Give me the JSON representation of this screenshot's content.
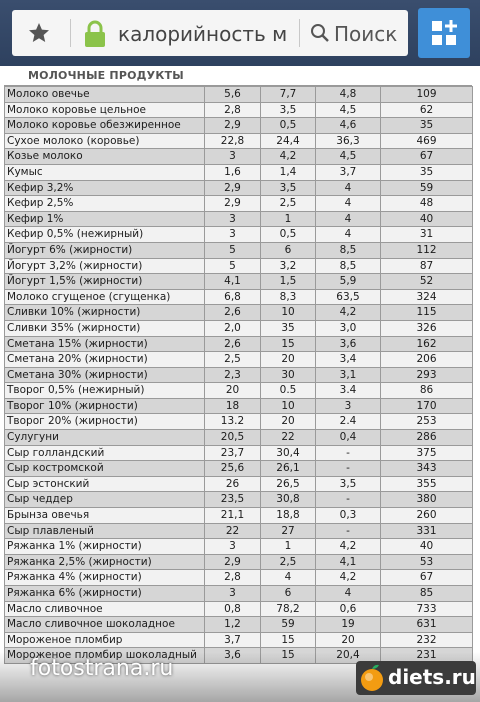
{
  "browser": {
    "url_text": "калорийность м",
    "search_label": "Поиск",
    "colors": {
      "bar": "#34486a",
      "tabs_button": "#3f8fd8",
      "lock": "#8bc34a"
    },
    "icons": [
      "star-icon",
      "lock-icon",
      "search-icon",
      "tabs-grid-icon"
    ]
  },
  "table": {
    "heading": "МОЛОЧНЫЕ ПРОДУКТЫ",
    "rows": [
      [
        "Молоко овечье",
        "5,6",
        "7,7",
        "4,8",
        "109"
      ],
      [
        "Молоко коровье цельное",
        "2,8",
        "3,5",
        "4,5",
        "62"
      ],
      [
        "Молоко коровье обезжиренное",
        "2,9",
        "0,5",
        "4,6",
        "35"
      ],
      [
        "Сухое молоко (коровье)",
        "22,8",
        "24,4",
        "36,3",
        "469"
      ],
      [
        "Козье молоко",
        "3",
        "4,2",
        "4,5",
        "67"
      ],
      [
        "Кумыс",
        "1,6",
        "1,4",
        "3,7",
        "35"
      ],
      [
        "Кефир 3,2%",
        "2,9",
        "3,5",
        "4",
        "59"
      ],
      [
        "Кефир 2,5%",
        "2,9",
        "2,5",
        "4",
        "48"
      ],
      [
        "Кефир 1%",
        "3",
        "1",
        "4",
        "40"
      ],
      [
        "Кефир 0,5% (нежирный)",
        "3",
        "0,5",
        "4",
        "31"
      ],
      [
        "Йогурт 6% (жирности)",
        "5",
        "6",
        "8,5",
        "112"
      ],
      [
        "Йогурт 3,2% (жирности)",
        "5",
        "3,2",
        "8,5",
        "87"
      ],
      [
        "Йогурт 1,5% (жирности)",
        "4,1",
        "1,5",
        "5,9",
        "52"
      ],
      [
        "Молоко сгущеное (сгущенка)",
        "6,8",
        "8,3",
        "63,5",
        "324"
      ],
      [
        "Сливки 10% (жирности)",
        "2,6",
        "10",
        "4,2",
        "115"
      ],
      [
        "Сливки 35% (жирности)",
        "2,0",
        "35",
        "3,0",
        "326"
      ],
      [
        "Сметана 15% (жирности)",
        "2,6",
        "15",
        "3,6",
        "162"
      ],
      [
        "Сметана 20% (жирности)",
        "2,5",
        "20",
        "3,4",
        "206"
      ],
      [
        "Сметана 30% (жирности)",
        "2,3",
        "30",
        "3,1",
        "293"
      ],
      [
        "Творог 0,5% (нежирный)",
        "20",
        "0.5",
        "3.4",
        "86"
      ],
      [
        "Творог 10% (жирности)",
        "18",
        "10",
        "3",
        "170"
      ],
      [
        "Творог 20% (жирности)",
        "13.2",
        "20",
        "2.4",
        "253"
      ],
      [
        "Сулугуни",
        "20,5",
        "22",
        "0,4",
        "286"
      ],
      [
        "Сыр голландский",
        "23,7",
        "30,4",
        "-",
        "375"
      ],
      [
        "Сыр костромской",
        "25,6",
        "26,1",
        "-",
        "343"
      ],
      [
        "Сыр эстонский",
        "26",
        "26,5",
        "3,5",
        "355"
      ],
      [
        "Сыр чеддер",
        "23,5",
        "30,8",
        "-",
        "380"
      ],
      [
        "Брынза овечья",
        "21,1",
        "18,8",
        "0,3",
        "260"
      ],
      [
        "Сыр плавленый",
        "22",
        "27",
        "-",
        "331"
      ],
      [
        "Ряжанка 1% (жирности)",
        "3",
        "1",
        "4,2",
        "40"
      ],
      [
        "Ряжанка 2,5% (жирности)",
        "2,9",
        "2,5",
        "4,1",
        "53"
      ],
      [
        "Ряжанка 4% (жирности)",
        "2,8",
        "4",
        "4,2",
        "67"
      ],
      [
        "Ряжанка 6% (жирности)",
        "3",
        "6",
        "4",
        "85"
      ],
      [
        "Масло сливочное",
        "0,8",
        "78,2",
        "0,6",
        "733"
      ],
      [
        "Масло сливочное шоколадное",
        "1,2",
        "59",
        "19",
        "631"
      ],
      [
        "Мороженое пломбир",
        "3,7",
        "15",
        "20",
        "232"
      ],
      [
        "Мороженое пломбир шоколадный",
        "3,6",
        "15",
        "20,4",
        "231"
      ]
    ]
  },
  "watermarks": {
    "left": "fotostrana.ru",
    "right": "diets.ru"
  }
}
